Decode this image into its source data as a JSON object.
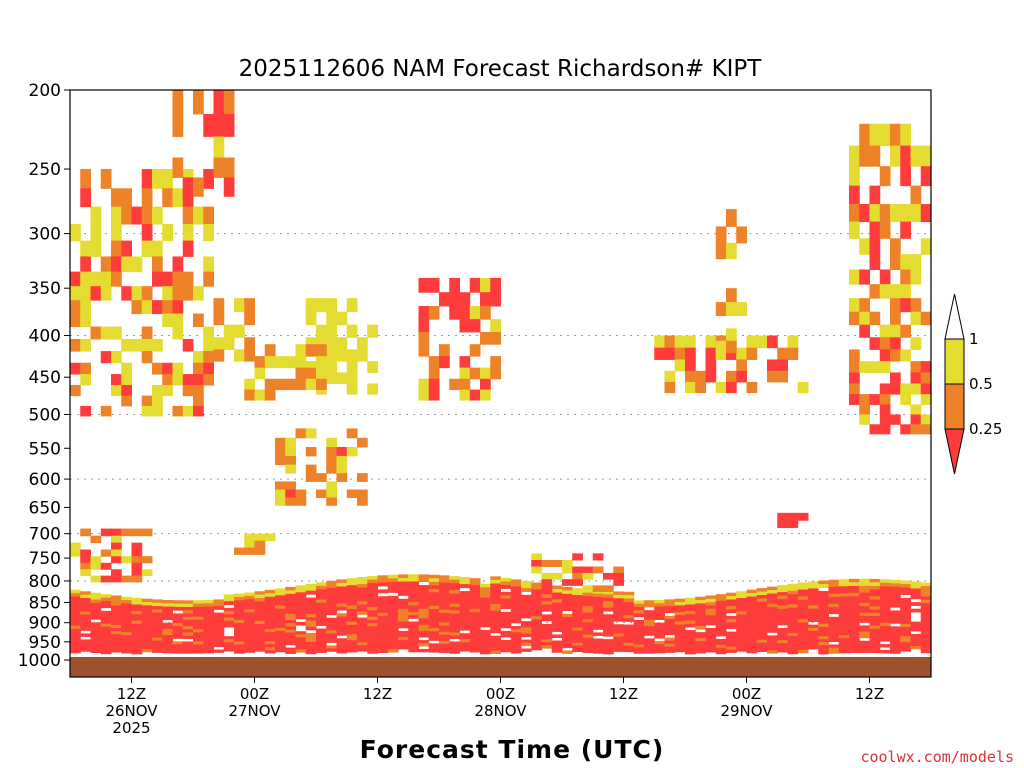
{
  "chart_data": {
    "type": "heatmap",
    "title": "2025112606 NAM Forecast Richardson# KIPT",
    "xlabel": "Forecast Time (UTC)",
    "ylabel": "",
    "y_axis": {
      "scale": "pressure (reversed, log-like)",
      "range": [
        1000,
        200
      ],
      "ticks": [
        "200",
        "250",
        "300",
        "350",
        "400",
        "450",
        "500",
        "550",
        "600",
        "650",
        "700",
        "750",
        "800",
        "850",
        "900",
        "950",
        "1000"
      ],
      "gridlines": [
        300,
        400,
        500,
        600,
        700,
        800,
        900,
        1000
      ]
    },
    "x_axis": {
      "range": [
        "2025-11-26 06Z",
        "2025-11-29 18Z"
      ],
      "ticks": [
        {
          "line1": "12Z",
          "line2": "26NOV",
          "line3": "2025"
        },
        {
          "line1": "00Z",
          "line2": "27NOV",
          "line3": ""
        },
        {
          "line1": "12Z",
          "line2": "",
          "line3": ""
        },
        {
          "line1": "00Z",
          "line2": "28NOV",
          "line3": ""
        },
        {
          "line1": "12Z",
          "line2": "",
          "line3": ""
        },
        {
          "line1": "00Z",
          "line2": "29NOV",
          "line3": ""
        },
        {
          "line1": "12Z",
          "line2": "",
          "line3": ""
        }
      ]
    },
    "colorbar": {
      "levels": [
        "1",
        "0.5",
        "0.25"
      ],
      "bins": [
        {
          "range": "> 1",
          "color": "#ffffff"
        },
        {
          "range": "0.5 - 1",
          "color": "#e5dc32"
        },
        {
          "range": "0.25 - 0.5",
          "color": "#ee8228"
        },
        {
          "range": "< 0.25",
          "color": "#ff3c3c"
        }
      ]
    },
    "ground_color": "#a0522d",
    "regions": [
      {
        "bin": "< 0.25",
        "desc": "boundary layer",
        "t": [
          0,
          84
        ],
        "p": [
          830,
          980
        ]
      },
      {
        "bin": "< 0.25",
        "t": [
          3,
          9
        ],
        "p": [
          720,
          790
        ]
      },
      {
        "bin": "< 0.25",
        "t": [
          47,
          52
        ],
        "p": [
          750,
          800
        ]
      },
      {
        "bin": "0.25 - 0.5",
        "t": [
          20,
          29
        ],
        "p": [
          520,
          630
        ]
      },
      {
        "bin": "0.25 - 0.5",
        "t": [
          34,
          40
        ],
        "p": [
          340,
          460
        ]
      },
      {
        "bin": "0.5 - 1",
        "t": [
          0,
          14
        ],
        "p": [
          250,
          500
        ]
      },
      {
        "bin": "0.5 - 1",
        "t": [
          76,
          84
        ],
        "p": [
          220,
          520
        ]
      },
      {
        "bin": "< 0.25",
        "t": [
          11,
          16
        ],
        "p": [
          200,
          215
        ]
      },
      {
        "bin": "< 0.25",
        "t": [
          38,
          42
        ],
        "p": [
          360,
          390
        ]
      },
      {
        "bin": "< 0.25",
        "t": [
          69,
          72
        ],
        "p": [
          660,
          680
        ]
      }
    ]
  },
  "credit": "coolwx.com/models"
}
